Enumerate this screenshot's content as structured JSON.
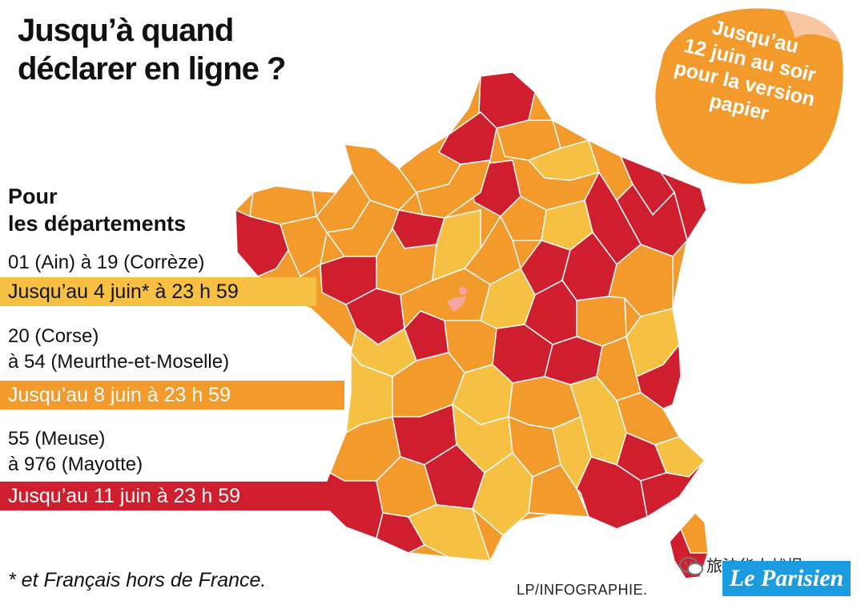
{
  "title_line1": "Jusqu’à quand",
  "title_line2": "déclarer en ligne ?",
  "sticker": {
    "lines": [
      "Jusqu’au",
      "12 juin au soir",
      "pour la version",
      "papier"
    ],
    "color": "#f39a2c"
  },
  "groups_heading": [
    "Pour",
    "les départements"
  ],
  "groups": [
    {
      "range_lines": [
        "01 (Ain) à 19 (Corrèze)"
      ],
      "deadline": "Jusqu’au 4 juin* à 23 h 59",
      "color": "#f6c042"
    },
    {
      "range_lines": [
        "20 (Corse)",
        "à 54 (Meurthe-et-Moselle)"
      ],
      "deadline": "Jusqu’au 8 juin à 23 h 59",
      "color": "#f39a2c"
    },
    {
      "range_lines": [
        "55 (Meuse)",
        "à 976 (Mayotte)"
      ],
      "deadline": "Jusqu’au 11 juin à 23 h 59",
      "color": "#cf1f2e"
    }
  ],
  "footnote": "* et Français hors de France.",
  "credit": "LP/INFOGRAPHIE.",
  "source_tag": "旅法华人战报",
  "logo": "Le Parisien",
  "map": {
    "icon": "france-departments-map",
    "category_colors": {
      "yellow": "#f6c042",
      "orange": "#f39a2c",
      "red": "#cf1f2e"
    }
  }
}
